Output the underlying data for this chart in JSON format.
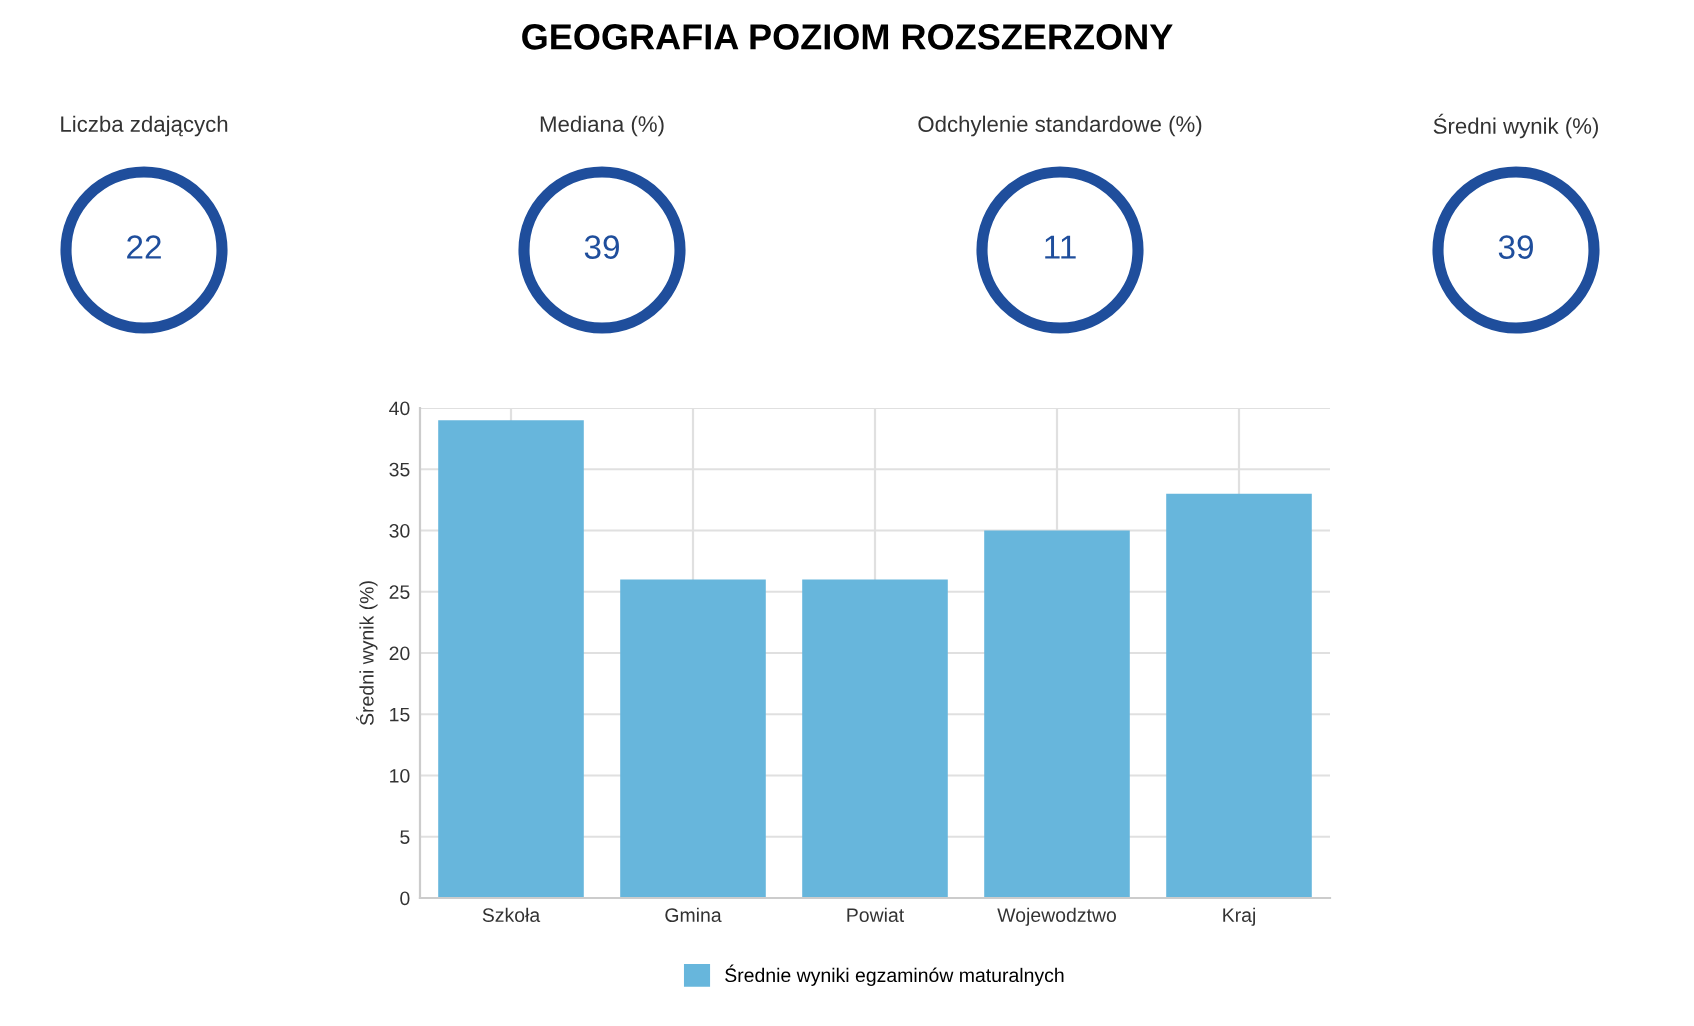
{
  "chart_data": [
    {
      "type": "other",
      "title": "Liczba zdających",
      "annotations": [
        "22"
      ]
    },
    {
      "type": "other",
      "title": "Mediana (%)",
      "annotations": [
        "39"
      ]
    },
    {
      "type": "other",
      "title": "Odchylenie standardowe (%)",
      "annotations": [
        "11"
      ]
    },
    {
      "type": "other",
      "title": "Średni wynik (%)",
      "annotations": [
        "39"
      ]
    },
    {
      "type": "bar",
      "title": "GEOGRAFIA POZIOM ROZSZERZONY",
      "ylabel": "Średni wynik (%)",
      "categories": [
        "Szkoła",
        "Gmina",
        "Powiat",
        "Wojewodztwo",
        "Kraj"
      ],
      "series": [
        {
          "name": "Średnie wyniki egzaminów maturalnych",
          "color": "#67b6dc",
          "values": [
            39,
            26,
            26,
            30,
            33
          ]
        }
      ],
      "ylim": [
        0,
        40
      ],
      "yticks": [
        0,
        5,
        10,
        15,
        20,
        25,
        30,
        35,
        40
      ],
      "grid": true,
      "legend": "bottom"
    }
  ]
}
